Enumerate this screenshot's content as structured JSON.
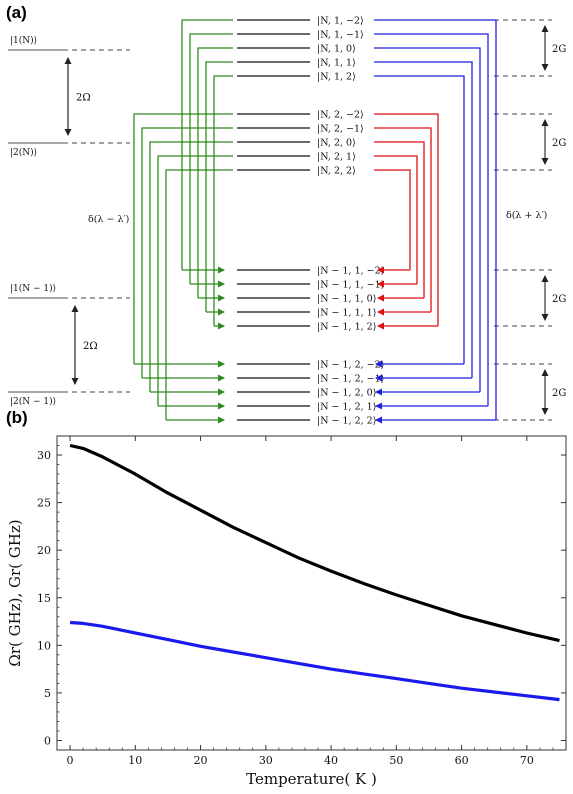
{
  "panel_a": {
    "label": "(a)",
    "colors": {
      "black": "#111111",
      "green": "#2e8b1e",
      "blue": "#2222dd",
      "red": "#dd1111",
      "gray": "#444444"
    },
    "left_states": [
      "|1(N)⟩",
      "|2(N)⟩",
      "|1(N − 1)⟩",
      "|2(N − 1)⟩"
    ],
    "two_omega_label": "2Ω",
    "two_g_label": "2G",
    "delta_minus_label": "δ(λ − λ′)",
    "delta_plus_label": "δ(λ + λ′)",
    "groups": [
      [
        "|N, 1, −2⟩",
        "|N, 1, −1⟩",
        "|N, 1, 0⟩",
        "|N, 1, 1⟩",
        "|N, 1, 2⟩"
      ],
      [
        "|N, 2, −2⟩",
        "|N, 2, −1⟩",
        "|N, 2, 0⟩",
        "|N, 2, 1⟩",
        "|N, 2, 2⟩"
      ],
      [
        "|N − 1, 1, −2⟩",
        "|N − 1, 1, −1⟩",
        "|N − 1, 1, 0⟩",
        "|N − 1, 1, 1⟩",
        "|N − 1, 1, 2⟩"
      ],
      [
        "|N − 1, 2, −2⟩",
        "|N − 1, 2, −1⟩",
        "|N − 1, 2, 0⟩",
        "|N − 1, 2, 1⟩",
        "|N − 1, 2, 2⟩"
      ]
    ]
  },
  "panel_b": {
    "label": "(b)",
    "chart_data": {
      "type": "line",
      "xlabel": "Temperature( K )",
      "ylabel": "Ωr( GHz),  Gr( GHz)",
      "xlim": [
        -2,
        76
      ],
      "ylim": [
        -1,
        32
      ],
      "xticks": [
        0,
        10,
        20,
        30,
        40,
        50,
        60,
        70
      ],
      "yticks": [
        0,
        5,
        10,
        15,
        20,
        25,
        30
      ],
      "grid": false,
      "series": [
        {
          "color": "#000000",
          "x": [
            0,
            2,
            5,
            10,
            15,
            20,
            25,
            30,
            35,
            40,
            45,
            50,
            55,
            60,
            65,
            70,
            75
          ],
          "values": [
            31.0,
            30.7,
            29.8,
            28.0,
            26.0,
            24.2,
            22.4,
            20.8,
            19.2,
            17.8,
            16.5,
            15.3,
            14.2,
            13.1,
            12.2,
            11.3,
            10.5
          ]
        },
        {
          "color": "#1a1aee",
          "x": [
            0,
            2,
            5,
            10,
            15,
            20,
            25,
            30,
            35,
            40,
            45,
            50,
            55,
            60,
            65,
            70,
            75
          ],
          "values": [
            12.4,
            12.3,
            12.0,
            11.3,
            10.6,
            9.9,
            9.3,
            8.7,
            8.1,
            7.5,
            7.0,
            6.5,
            6.0,
            5.5,
            5.1,
            4.7,
            4.3
          ]
        }
      ]
    }
  }
}
